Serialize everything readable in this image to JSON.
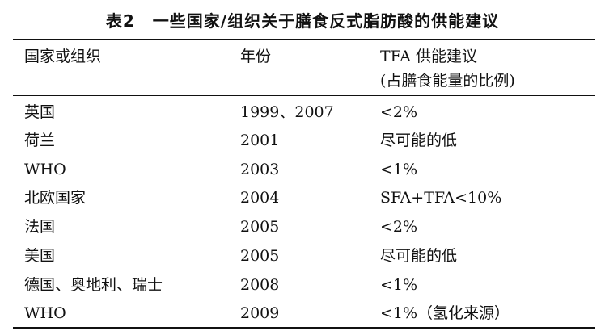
{
  "table": {
    "caption_number": "表2",
    "caption_title": "一些国家/组织关于膳食反式脂肪酸的供能建议",
    "headers": {
      "col1": "国家或组织",
      "col2": "年份",
      "col3": "TFA 供能建议",
      "col3_sub": "(占膳食能量的比例)"
    },
    "rows": [
      {
        "org": "英国",
        "year": "1999、2007",
        "rec": "<2%"
      },
      {
        "org": "荷兰",
        "year": "2001",
        "rec": "尽可能的低"
      },
      {
        "org": "WHO",
        "year": "2003",
        "rec": "<1%"
      },
      {
        "org": "北欧国家",
        "year": "2004",
        "rec": "SFA+TFA<10%"
      },
      {
        "org": "法国",
        "year": "2005",
        "rec": "<2%"
      },
      {
        "org": "美国",
        "year": "2005",
        "rec": "尽可能的低"
      },
      {
        "org": "德国、奥地利、瑞士",
        "year": "2008",
        "rec": "<1%"
      },
      {
        "org": "WHO",
        "year": "2009",
        "rec": "<1%（氢化来源）"
      }
    ]
  }
}
